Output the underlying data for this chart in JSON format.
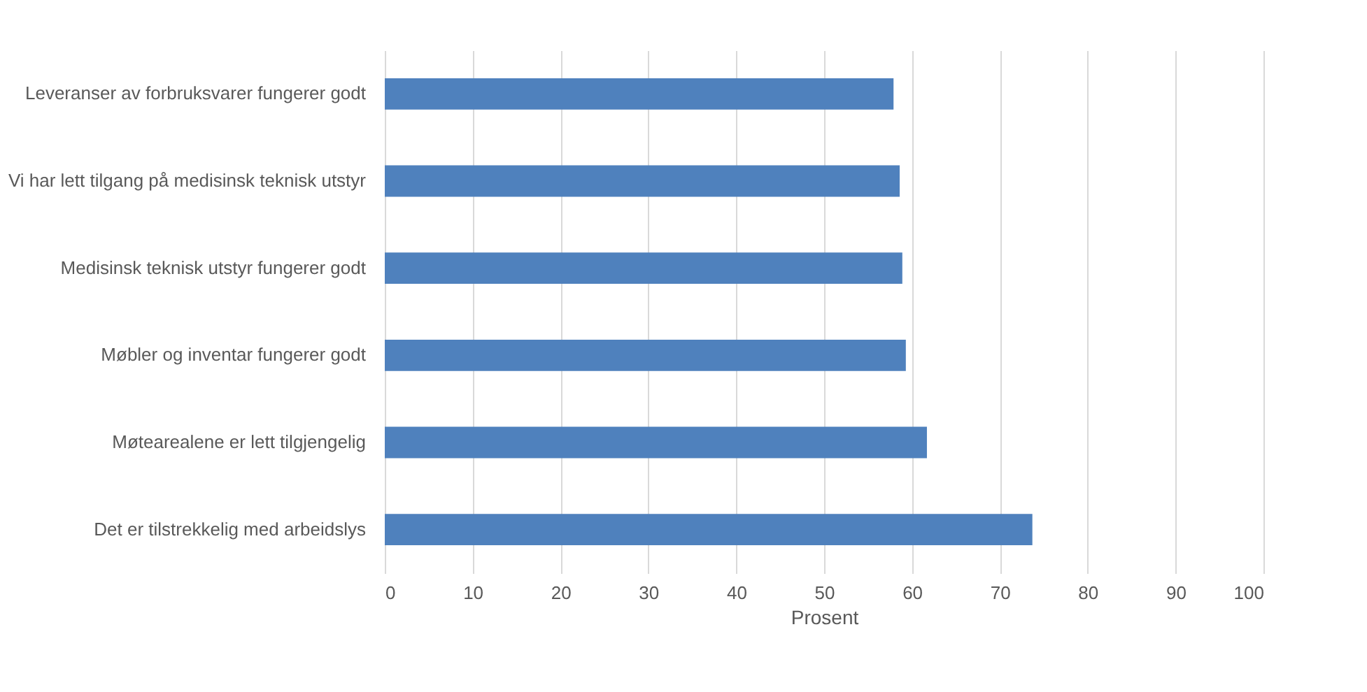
{
  "chart_data": {
    "type": "bar",
    "orientation": "horizontal",
    "xlabel": "Prosent",
    "categories": [
      "Leveranser av forbruksvarer fungerer godt",
      "Vi har lett tilgang på medisinsk teknisk utstyr",
      "Medisinsk teknisk utstyr fungerer godt",
      "Møbler og inventar fungerer godt",
      "Møtearealene er lett tilgjengelig",
      "Det er tilstrekkelig med arbeidslys"
    ],
    "values": [
      57.9,
      58.6,
      58.9,
      59.3,
      61.7,
      73.7
    ],
    "color": "#4f81bd",
    "xlim": [
      0,
      100
    ],
    "xticks": [
      0,
      10,
      20,
      30,
      40,
      50,
      60,
      70,
      80,
      90,
      100
    ],
    "grid": "x"
  }
}
